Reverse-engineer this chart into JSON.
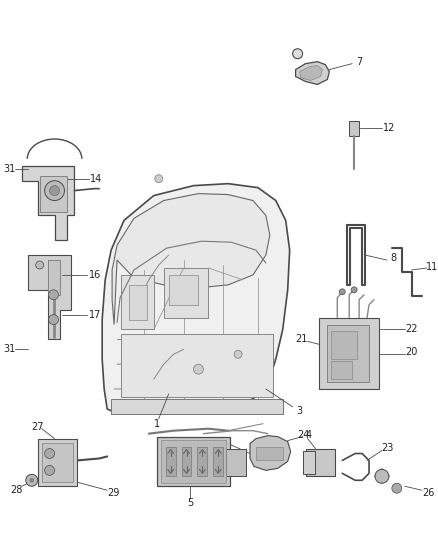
{
  "bg_color": "#ffffff",
  "line_color": "#4a4a4a",
  "text_color": "#222222",
  "fig_width": 4.38,
  "fig_height": 5.33,
  "dpi": 100,
  "gray_light": "#cccccc",
  "gray_mid": "#aaaaaa",
  "gray_dark": "#888888"
}
